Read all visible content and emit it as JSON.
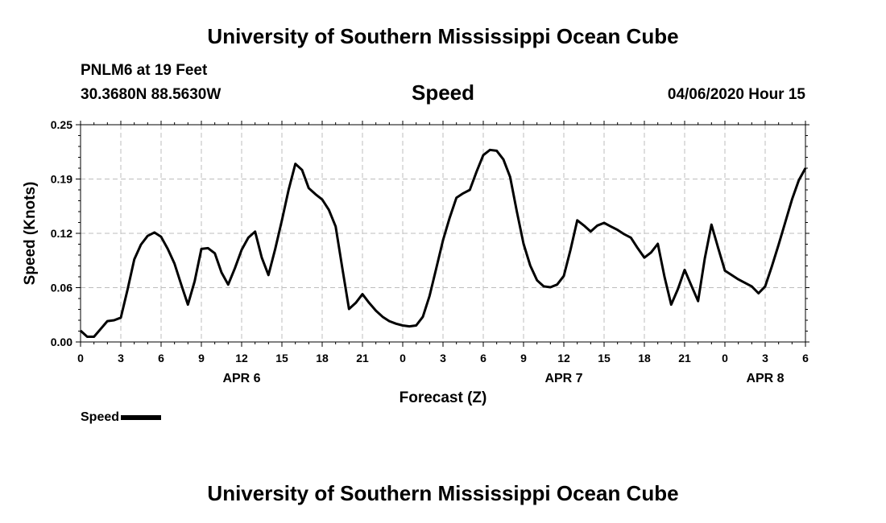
{
  "header": {
    "title": "University of Southern Mississippi Ocean Cube",
    "station": "PNLM6 at 19 Feet",
    "coords": "30.3680N 88.5630W",
    "parameter": "Speed",
    "datetime": "04/06/2020 Hour 15"
  },
  "footer": {
    "title": "University of Southern Mississippi Ocean Cube"
  },
  "legend": {
    "label": "Speed",
    "color": "#000000"
  },
  "chart_data": {
    "type": "line",
    "title": "Speed",
    "xlabel": "Forecast (Z)",
    "ylabel": "Speed (Knots)",
    "ylim": [
      0,
      0.25
    ],
    "yticks": [
      "0.00",
      "0.06",
      "0.12",
      "0.19",
      "0.25"
    ],
    "ytick_values": [
      0,
      0.0625,
      0.125,
      0.1875,
      0.25
    ],
    "xlim": [
      0,
      54
    ],
    "xticks": [
      "0",
      "3",
      "6",
      "9",
      "12",
      "15",
      "18",
      "21",
      "0",
      "3",
      "6",
      "9",
      "12",
      "15",
      "18",
      "21",
      "0",
      "3",
      "6"
    ],
    "xtick_values": [
      0,
      3,
      6,
      9,
      12,
      15,
      18,
      21,
      24,
      27,
      30,
      33,
      36,
      39,
      42,
      45,
      48,
      51,
      54
    ],
    "date_labels": [
      {
        "label": "APR 6",
        "x": 12
      },
      {
        "label": "APR 7",
        "x": 36
      },
      {
        "label": "APR 8",
        "x": 51
      }
    ],
    "grid": true,
    "series": [
      {
        "name": "Speed",
        "color": "#000000",
        "x": [
          0,
          0.5,
          1,
          1.5,
          2,
          2.5,
          3,
          3.5,
          4,
          4.5,
          5,
          5.5,
          6,
          6.5,
          7,
          7.5,
          8,
          8.5,
          9,
          9.5,
          10,
          10.5,
          11,
          11.5,
          12,
          12.5,
          13,
          13.5,
          14,
          14.5,
          15,
          15.5,
          16,
          16.5,
          17,
          17.5,
          18,
          18.5,
          19,
          19.5,
          20,
          20.5,
          21,
          21.5,
          22,
          22.5,
          23,
          23.5,
          24,
          24.5,
          25,
          25.5,
          26,
          26.5,
          27,
          27.5,
          28,
          28.5,
          29,
          29.5,
          30,
          30.5,
          31,
          31.5,
          32,
          32.5,
          33,
          33.5,
          34,
          34.5,
          35,
          35.5,
          36,
          36.5,
          37,
          37.5,
          38,
          38.5,
          39,
          39.5,
          40,
          40.5,
          41,
          41.5,
          42,
          42.5,
          43,
          43.5,
          44,
          44.5,
          45,
          45.5,
          46,
          46.5,
          47,
          47.5,
          48,
          48.5,
          49,
          49.5,
          50,
          50.5,
          51,
          51.5,
          52,
          52.5,
          53,
          53.5,
          54
        ],
        "values": [
          0.013,
          0.006,
          0.006,
          0.015,
          0.024,
          0.025,
          0.028,
          0.06,
          0.095,
          0.112,
          0.122,
          0.126,
          0.121,
          0.107,
          0.09,
          0.066,
          0.043,
          0.07,
          0.107,
          0.108,
          0.102,
          0.08,
          0.066,
          0.085,
          0.106,
          0.12,
          0.127,
          0.097,
          0.077,
          0.107,
          0.14,
          0.175,
          0.205,
          0.198,
          0.177,
          0.17,
          0.164,
          0.152,
          0.133,
          0.085,
          0.038,
          0.045,
          0.055,
          0.045,
          0.036,
          0.029,
          0.024,
          0.021,
          0.019,
          0.018,
          0.019,
          0.029,
          0.053,
          0.085,
          0.117,
          0.143,
          0.166,
          0.171,
          0.175,
          0.196,
          0.215,
          0.221,
          0.22,
          0.21,
          0.19,
          0.15,
          0.113,
          0.088,
          0.071,
          0.064,
          0.063,
          0.066,
          0.076,
          0.106,
          0.14,
          0.134,
          0.127,
          0.134,
          0.137,
          0.133,
          0.129,
          0.124,
          0.12,
          0.108,
          0.097,
          0.103,
          0.113,
          0.075,
          0.043,
          0.061,
          0.083,
          0.065,
          0.047,
          0.096,
          0.135,
          0.108,
          0.082,
          0.077,
          0.072,
          0.068,
          0.064,
          0.056,
          0.064,
          0.087,
          0.112,
          0.138,
          0.164,
          0.186,
          0.2
        ]
      }
    ]
  }
}
